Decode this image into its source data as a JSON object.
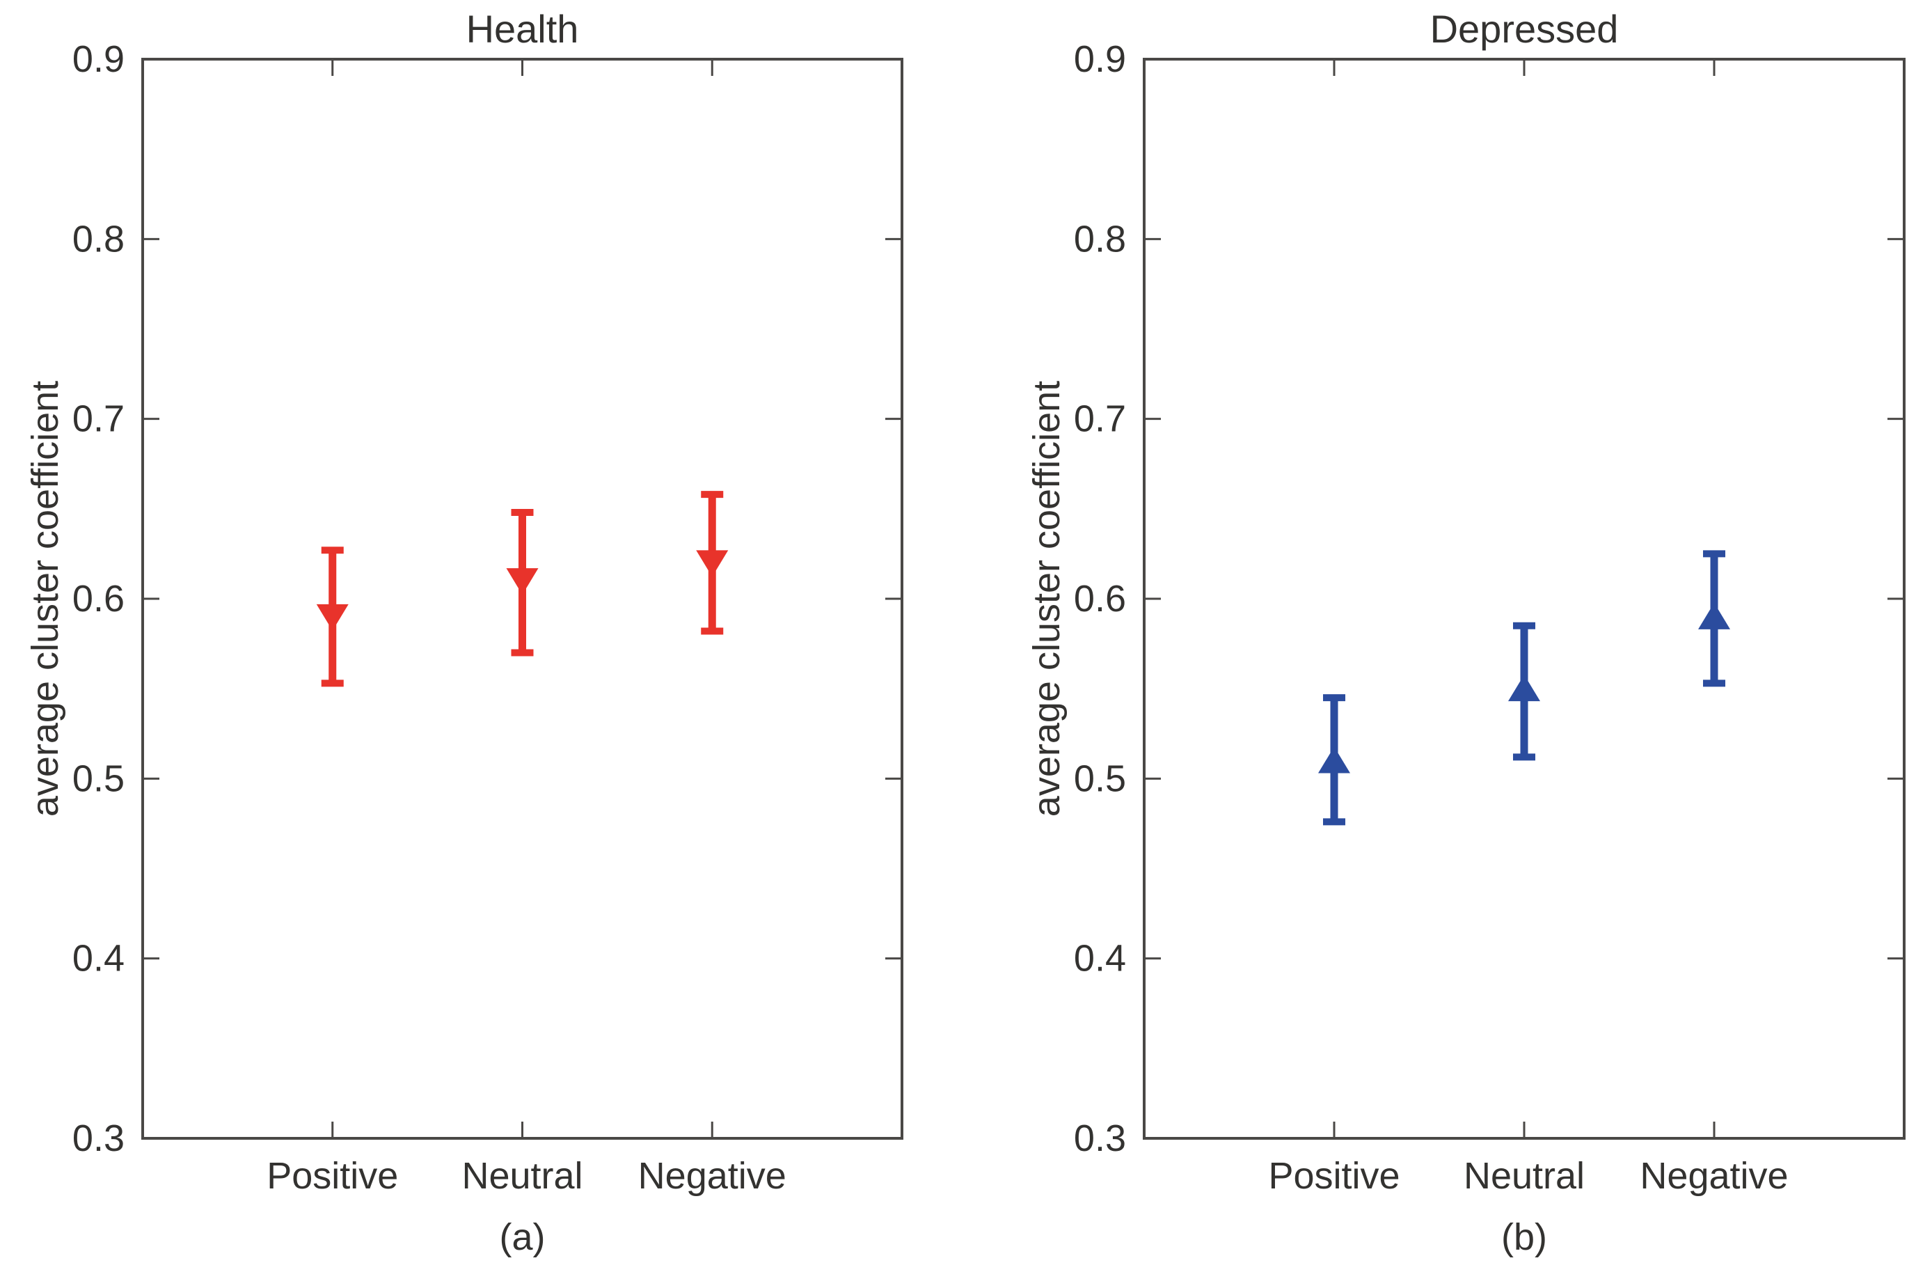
{
  "figure": {
    "background": "#ffffff",
    "axis_color": "#4a4846",
    "text_color": "#333230"
  },
  "chart_data": [
    {
      "type": "scatter",
      "panel_label": "(a)",
      "title": "Health",
      "ylabel": "average cluster coefficient",
      "categories": [
        "Positive",
        "Neutral",
        "Negative"
      ],
      "ylim": [
        0.3,
        0.9
      ],
      "yticks": [
        "0.9",
        "0.8",
        "0.7",
        "0.6",
        "0.5",
        "0.4",
        "0.3"
      ],
      "grid": false,
      "legend": "none",
      "marker": "triangle-down",
      "color": "#e8332b",
      "series": [
        {
          "name": "Health",
          "mean": [
            0.59,
            0.61,
            0.62
          ],
          "lo": [
            0.553,
            0.57,
            0.582
          ],
          "hi": [
            0.627,
            0.648,
            0.658
          ]
        }
      ]
    },
    {
      "type": "scatter",
      "panel_label": "(b)",
      "title": "Depressed",
      "ylabel": "average cluster coefficient",
      "categories": [
        "Positive",
        "Neutral",
        "Negative"
      ],
      "ylim": [
        0.3,
        0.9
      ],
      "yticks": [
        "0.9",
        "0.8",
        "0.7",
        "0.6",
        "0.5",
        "0.4",
        "0.3"
      ],
      "grid": false,
      "legend": "none",
      "marker": "triangle-up",
      "color": "#2b4c9e",
      "series": [
        {
          "name": "Depressed",
          "mean": [
            0.51,
            0.55,
            0.59
          ],
          "lo": [
            0.476,
            0.512,
            0.553
          ],
          "hi": [
            0.545,
            0.585,
            0.625
          ]
        }
      ]
    }
  ]
}
